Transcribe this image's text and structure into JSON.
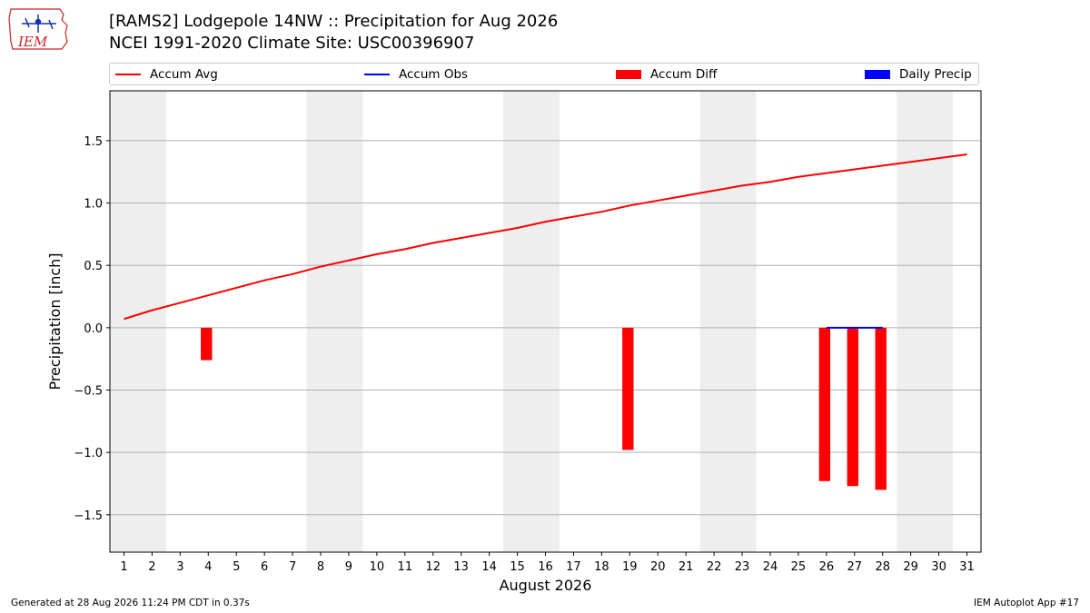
{
  "header": {
    "title_line1": "[RAMS2] Lodgepole 14NW :: Precipitation for Aug 2026",
    "title_line2": "NCEI 1991-2020 Climate Site: USC00396907"
  },
  "logo": {
    "text": "IEM",
    "icon": "iowa-state-outline-logo"
  },
  "legend": {
    "placement": "top",
    "items": [
      {
        "label": "Accum Avg",
        "kind": "line",
        "color": "#ff0000"
      },
      {
        "label": "Accum Obs",
        "kind": "line",
        "color": "#0000ff"
      },
      {
        "label": "Accum Diff",
        "kind": "patch",
        "color": "#ff0000"
      },
      {
        "label": "Daily Precip",
        "kind": "patch",
        "color": "#0000ff"
      }
    ]
  },
  "chart_data": {
    "type": "line",
    "xlabel": "August 2026",
    "ylabel": "Precipitation [inch]",
    "x": [
      1,
      2,
      3,
      4,
      5,
      6,
      7,
      8,
      9,
      10,
      11,
      12,
      13,
      14,
      15,
      16,
      17,
      18,
      19,
      20,
      21,
      22,
      23,
      24,
      25,
      26,
      27,
      28,
      29,
      30,
      31
    ],
    "xlim": [
      0.5,
      31.5
    ],
    "ylim": [
      -1.8,
      1.9
    ],
    "yticks": [
      -1.5,
      -1.0,
      -0.5,
      0.0,
      0.5,
      1.0,
      1.5
    ],
    "ytick_labels": [
      "−1.5",
      "−1.0",
      "−0.5",
      "0.0",
      "0.5",
      "1.0",
      "1.5"
    ],
    "grid_y": true,
    "weekend_shading": [
      [
        0.5,
        2.5
      ],
      [
        7.5,
        9.5
      ],
      [
        14.5,
        16.5
      ],
      [
        21.5,
        23.5
      ],
      [
        28.5,
        30.5
      ]
    ],
    "shade_color": "#eeeeee",
    "series": [
      {
        "name": "Accum Avg",
        "type": "line",
        "color": "#ff0000",
        "x": [
          1,
          2,
          3,
          4,
          5,
          6,
          7,
          8,
          9,
          10,
          11,
          12,
          13,
          14,
          15,
          16,
          17,
          18,
          19,
          20,
          21,
          22,
          23,
          24,
          25,
          26,
          27,
          28,
          29,
          30,
          31
        ],
        "values": [
          0.07,
          0.14,
          0.2,
          0.26,
          0.32,
          0.38,
          0.43,
          0.49,
          0.54,
          0.59,
          0.63,
          0.68,
          0.72,
          0.76,
          0.8,
          0.85,
          0.89,
          0.93,
          0.98,
          1.02,
          1.06,
          1.1,
          1.14,
          1.17,
          1.21,
          1.24,
          1.27,
          1.3,
          1.33,
          1.36,
          1.39
        ]
      },
      {
        "name": "Accum Obs",
        "type": "line",
        "color": "#0000ff",
        "x": [
          26,
          27,
          28
        ],
        "values": [
          0.0,
          0.0,
          0.0
        ]
      },
      {
        "name": "Accum Diff",
        "type": "bar",
        "color": "#ff0000",
        "x": [
          4,
          19,
          26,
          27,
          28
        ],
        "values": [
          -0.26,
          -0.98,
          -1.23,
          -1.27,
          -1.3
        ]
      },
      {
        "name": "Daily Precip",
        "type": "bar",
        "color": "#0000ff",
        "x": [],
        "values": []
      }
    ]
  },
  "footer": {
    "generated": "Generated at 28 Aug 2026 11:24 PM CDT in 0.37s",
    "app": "IEM Autoplot App #17"
  }
}
